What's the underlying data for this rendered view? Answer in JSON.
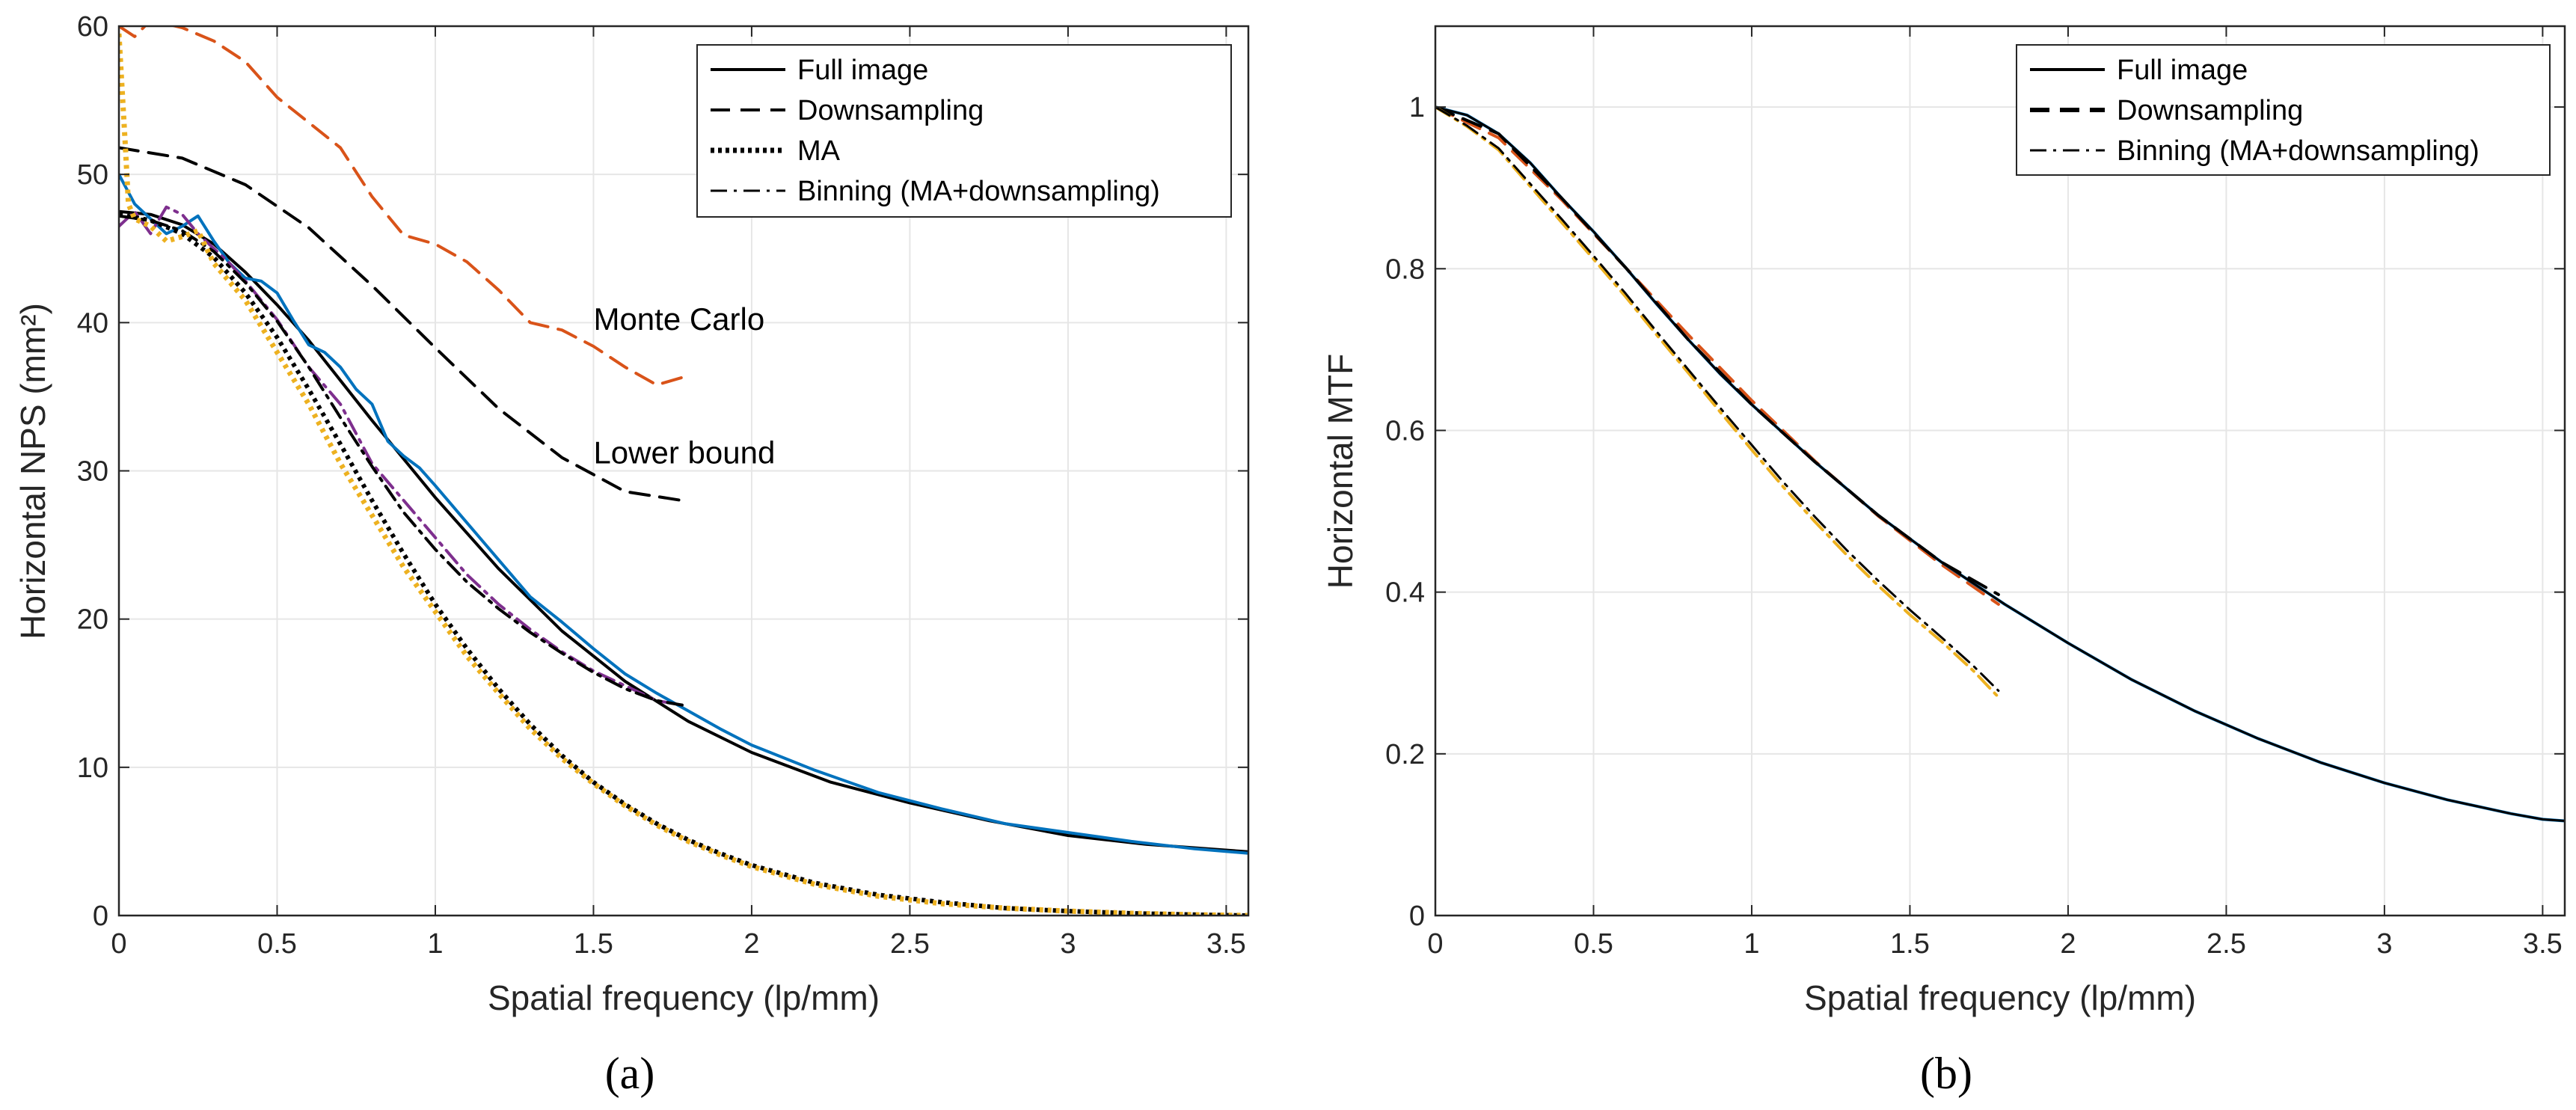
{
  "colors": {
    "black": "#000000",
    "blue": "#0072BD",
    "orange": "#D95319",
    "yellow": "#EDB120",
    "purple": "#7E2F8E",
    "grid": "#e6e6e6",
    "axis": "#262626"
  },
  "chart_data": [
    {
      "type": "line",
      "caption": "(a)",
      "xlabel": "Spatial frequency (lp/mm)",
      "ylabel": "Horizontal NPS (mm²)",
      "xlim": [
        0,
        3.57
      ],
      "ylim": [
        0,
        60
      ],
      "xticks": [
        0,
        0.5,
        1,
        1.5,
        2,
        2.5,
        3,
        3.5
      ],
      "xtick_labels": [
        "0",
        "0.5",
        "1",
        "1.5",
        "2",
        "2.5",
        "3",
        "3.5"
      ],
      "yticks": [
        0,
        10,
        20,
        30,
        40,
        50,
        60
      ],
      "ytick_labels": [
        "0",
        "10",
        "20",
        "30",
        "40",
        "50",
        "60"
      ],
      "grid": true,
      "legend_position": "top-right",
      "legend": [
        {
          "label": "Full image",
          "style": "solid"
        },
        {
          "label": "Downsampling",
          "style": "dashed"
        },
        {
          "label": "MA",
          "style": "dotted"
        },
        {
          "label": "Binning (MA+downsampling)",
          "style": "dashdot"
        }
      ],
      "annotations": [
        {
          "text": "Monte Carlo",
          "x": 1.5,
          "y": 39.5
        },
        {
          "text": "Lower bound",
          "x": 1.5,
          "y": 30.5
        }
      ],
      "series": [
        {
          "id": "lower-bound-downsampling",
          "color": "black",
          "style": "dashed",
          "width": 4,
          "x": [
            0,
            0.2,
            0.4,
            0.6,
            0.8,
            1.0,
            1.2,
            1.4,
            1.6,
            1.78
          ],
          "y": [
            51.8,
            51.1,
            49.3,
            46.4,
            42.5,
            38.3,
            34.2,
            30.9,
            28.6,
            28.0
          ]
        },
        {
          "id": "monte-carlo-downsampling",
          "color": "orange",
          "style": "dashed",
          "width": 4,
          "x": [
            0,
            0.05,
            0.1,
            0.2,
            0.3,
            0.4,
            0.5,
            0.6,
            0.7,
            0.8,
            0.9,
            1.0,
            1.1,
            1.2,
            1.3,
            1.4,
            1.5,
            1.6,
            1.7,
            1.78
          ],
          "y": [
            60,
            59.3,
            60.4,
            59.9,
            59.0,
            57.6,
            55.2,
            53.5,
            51.8,
            48.5,
            45.9,
            45.3,
            44.1,
            42.2,
            40.0,
            39.5,
            38.4,
            37.0,
            35.8,
            36.3
          ]
        },
        {
          "id": "full-image-theory",
          "color": "black",
          "style": "solid",
          "width": 4,
          "x": [
            0,
            0.1,
            0.2,
            0.3,
            0.4,
            0.5,
            0.6,
            0.7,
            0.8,
            0.9,
            1.0,
            1.2,
            1.4,
            1.6,
            1.8,
            2.0,
            2.25,
            2.5,
            2.75,
            3.0,
            3.25,
            3.57
          ],
          "y": [
            47.5,
            47.3,
            46.6,
            45.3,
            43.4,
            41.2,
            38.8,
            36.1,
            33.4,
            30.8,
            28.2,
            23.4,
            19.2,
            15.8,
            13.1,
            11.0,
            9.0,
            7.6,
            6.4,
            5.4,
            4.8,
            4.3
          ]
        },
        {
          "id": "full-image-monte-carlo",
          "color": "blue",
          "style": "solid",
          "width": 4,
          "x": [
            0,
            0.05,
            0.1,
            0.15,
            0.2,
            0.25,
            0.3,
            0.35,
            0.4,
            0.45,
            0.5,
            0.55,
            0.6,
            0.65,
            0.7,
            0.75,
            0.8,
            0.85,
            0.9,
            0.95,
            1.0,
            1.1,
            1.2,
            1.3,
            1.4,
            1.5,
            1.6,
            1.7,
            1.8,
            1.9,
            2.0,
            2.2,
            2.4,
            2.6,
            2.8,
            3.0,
            3.2,
            3.4,
            3.57
          ],
          "y": [
            50.0,
            48.0,
            47.0,
            46.0,
            46.5,
            47.2,
            45.5,
            44.0,
            43.0,
            42.8,
            42.0,
            40.2,
            38.5,
            38.0,
            37.0,
            35.5,
            34.5,
            32.0,
            31.0,
            30.2,
            29.0,
            26.5,
            24.0,
            21.5,
            19.8,
            18.0,
            16.3,
            15.0,
            13.8,
            12.6,
            11.5,
            9.8,
            8.3,
            7.2,
            6.2,
            5.6,
            5.0,
            4.5,
            4.2
          ]
        },
        {
          "id": "binning-monte-carlo",
          "color": "purple",
          "style": "dashdot",
          "width": 4,
          "x": [
            0,
            0.05,
            0.1,
            0.15,
            0.2,
            0.25,
            0.3,
            0.35,
            0.4,
            0.5,
            0.6,
            0.7,
            0.8,
            0.9,
            1.0,
            1.1,
            1.2,
            1.3,
            1.4,
            1.5,
            1.6,
            1.7,
            1.78
          ],
          "y": [
            46.5,
            47.5,
            46.0,
            47.8,
            47.3,
            46.0,
            45.0,
            44.0,
            42.8,
            40.2,
            37.0,
            34.5,
            30.5,
            28.0,
            25.5,
            23.0,
            21.0,
            19.3,
            17.8,
            16.5,
            15.5,
            14.5,
            14.2
          ]
        },
        {
          "id": "binning-theory",
          "color": "black",
          "style": "dashdot",
          "width": 4,
          "x": [
            0,
            0.1,
            0.2,
            0.3,
            0.4,
            0.5,
            0.6,
            0.7,
            0.8,
            0.9,
            1.0,
            1.1,
            1.2,
            1.3,
            1.4,
            1.5,
            1.6,
            1.7,
            1.78
          ],
          "y": [
            47.2,
            46.9,
            46.2,
            44.8,
            42.7,
            40.1,
            37.0,
            33.6,
            30.3,
            27.2,
            24.7,
            22.5,
            20.7,
            19.1,
            17.7,
            16.4,
            15.3,
            14.5,
            14.2
          ]
        },
        {
          "id": "ma-theory",
          "color": "black",
          "style": "dotted",
          "width": 6,
          "x": [
            0,
            0.1,
            0.2,
            0.3,
            0.4,
            0.5,
            0.6,
            0.7,
            0.8,
            0.9,
            1.0,
            1.1,
            1.2,
            1.3,
            1.4,
            1.5,
            1.6,
            1.7,
            1.8,
            1.9,
            2.0,
            2.2,
            2.4,
            2.6,
            2.8,
            3.0,
            3.2,
            3.4,
            3.57
          ],
          "y": [
            47.3,
            46.9,
            46.0,
            44.4,
            42.0,
            39.0,
            35.5,
            31.8,
            28.0,
            24.4,
            21.0,
            18.0,
            15.3,
            12.9,
            10.8,
            9.0,
            7.5,
            6.2,
            5.1,
            4.2,
            3.4,
            2.2,
            1.4,
            0.9,
            0.5,
            0.3,
            0.15,
            0.06,
            0.0
          ]
        },
        {
          "id": "ma-monte-carlo",
          "color": "yellow",
          "style": "dotted",
          "width": 7,
          "x": [
            0,
            0.02,
            0.03,
            0.05,
            0.1,
            0.15,
            0.2,
            0.25,
            0.3,
            0.4,
            0.5,
            0.6,
            0.7,
            0.8,
            0.9,
            1.0,
            1.1,
            1.2,
            1.3,
            1.4,
            1.5,
            1.6,
            1.7,
            1.8,
            1.9,
            2.0,
            2.2,
            2.4,
            2.6,
            2.8,
            3.0,
            3.2,
            3.4,
            3.57
          ],
          "y": [
            59.5,
            52.0,
            48.0,
            47.0,
            46.5,
            45.5,
            45.8,
            46.2,
            44.0,
            41.5,
            38.0,
            34.5,
            30.5,
            27.0,
            23.5,
            20.5,
            17.5,
            15.0,
            12.6,
            10.6,
            8.9,
            7.4,
            6.1,
            5.0,
            4.1,
            3.3,
            2.1,
            1.3,
            0.8,
            0.5,
            0.3,
            0.15,
            0.05,
            0.0
          ]
        }
      ]
    },
    {
      "type": "line",
      "caption": "(b)",
      "xlabel": "Spatial frequency (lp/mm)",
      "ylabel": "Horizontal MTF",
      "xlim": [
        0,
        3.57
      ],
      "ylim": [
        0,
        1.1
      ],
      "xticks": [
        0,
        0.5,
        1,
        1.5,
        2,
        2.5,
        3,
        3.5
      ],
      "xtick_labels": [
        "0",
        "0.5",
        "1",
        "1.5",
        "2",
        "2.5",
        "3",
        "3.5"
      ],
      "yticks": [
        0,
        0.2,
        0.4,
        0.6,
        0.8,
        1.0
      ],
      "ytick_labels": [
        "0",
        "0.2",
        "0.4",
        "0.6",
        "0.8",
        "1"
      ],
      "grid": true,
      "legend_position": "top-right",
      "legend": [
        {
          "label": "Full image",
          "style": "solid"
        },
        {
          "label": "Downsampling",
          "style": "dashed"
        },
        {
          "label": "Binning (MA+downsampling)",
          "style": "dashdot"
        }
      ],
      "series": [
        {
          "id": "downsampling-monte-carlo",
          "color": "orange",
          "style": "dashed",
          "width": 4,
          "x": [
            0,
            0.2,
            0.4,
            0.6,
            0.8,
            1.0,
            1.2,
            1.4,
            1.6,
            1.78
          ],
          "y": [
            1.0,
            0.962,
            0.885,
            0.802,
            0.718,
            0.637,
            0.562,
            0.494,
            0.434,
            0.385
          ]
        },
        {
          "id": "full-image-monte-carlo",
          "color": "blue",
          "style": "solid",
          "width": 4,
          "x": [
            0,
            0.1,
            0.2,
            0.3,
            0.4,
            0.5,
            0.6,
            0.7,
            0.8,
            0.9,
            1.0,
            1.2,
            1.4,
            1.6,
            1.8,
            2.0,
            2.2,
            2.4,
            2.6,
            2.8,
            3.0,
            3.2,
            3.4,
            3.5,
            3.57
          ],
          "y": [
            1.0,
            0.99,
            0.967,
            0.931,
            0.887,
            0.846,
            0.802,
            0.756,
            0.712,
            0.67,
            0.632,
            0.561,
            0.495,
            0.437,
            0.385,
            0.337,
            0.292,
            0.253,
            0.219,
            0.189,
            0.164,
            0.143,
            0.126,
            0.119,
            0.117
          ]
        },
        {
          "id": "full-image-theory",
          "color": "black",
          "style": "solid",
          "width": 3,
          "x": [
            0,
            0.1,
            0.2,
            0.3,
            0.4,
            0.5,
            0.6,
            0.7,
            0.8,
            0.9,
            1.0,
            1.2,
            1.4,
            1.6,
            1.8,
            2.0,
            2.2,
            2.4,
            2.6,
            2.8,
            3.0,
            3.2,
            3.4,
            3.5,
            3.57
          ],
          "y": [
            1.0,
            0.99,
            0.967,
            0.931,
            0.887,
            0.846,
            0.802,
            0.756,
            0.712,
            0.67,
            0.632,
            0.561,
            0.495,
            0.437,
            0.385,
            0.337,
            0.292,
            0.253,
            0.219,
            0.189,
            0.164,
            0.143,
            0.126,
            0.119,
            0.117
          ]
        },
        {
          "id": "downsampling-theory",
          "color": "black",
          "style": "dashed",
          "width": 4,
          "x": [
            0,
            0.2,
            0.4,
            0.6,
            0.8,
            1.0,
            1.2,
            1.4,
            1.6,
            1.78
          ],
          "y": [
            1.0,
            0.967,
            0.887,
            0.802,
            0.712,
            0.632,
            0.561,
            0.495,
            0.437,
            0.397
          ]
        },
        {
          "id": "binning-monte-carlo",
          "color": "yellow",
          "style": "dashdot",
          "width": 4,
          "x": [
            0,
            0.1,
            0.2,
            0.3,
            0.4,
            0.5,
            0.6,
            0.7,
            0.8,
            0.9,
            1.0,
            1.1,
            1.2,
            1.3,
            1.4,
            1.5,
            1.6,
            1.7,
            1.78
          ],
          "y": [
            1.0,
            0.976,
            0.947,
            0.902,
            0.857,
            0.812,
            0.766,
            0.718,
            0.671,
            0.623,
            0.576,
            0.53,
            0.487,
            0.446,
            0.408,
            0.372,
            0.339,
            0.303,
            0.27
          ]
        },
        {
          "id": "binning-theory",
          "color": "black",
          "style": "dashdot",
          "width": 3,
          "x": [
            0,
            0.1,
            0.2,
            0.3,
            0.4,
            0.5,
            0.6,
            0.7,
            0.8,
            0.9,
            1.0,
            1.1,
            1.2,
            1.3,
            1.4,
            1.5,
            1.6,
            1.7,
            1.78
          ],
          "y": [
            1.0,
            0.977,
            0.949,
            0.905,
            0.861,
            0.816,
            0.77,
            0.722,
            0.675,
            0.628,
            0.582,
            0.536,
            0.493,
            0.452,
            0.414,
            0.378,
            0.344,
            0.309,
            0.278
          ]
        }
      ]
    }
  ]
}
